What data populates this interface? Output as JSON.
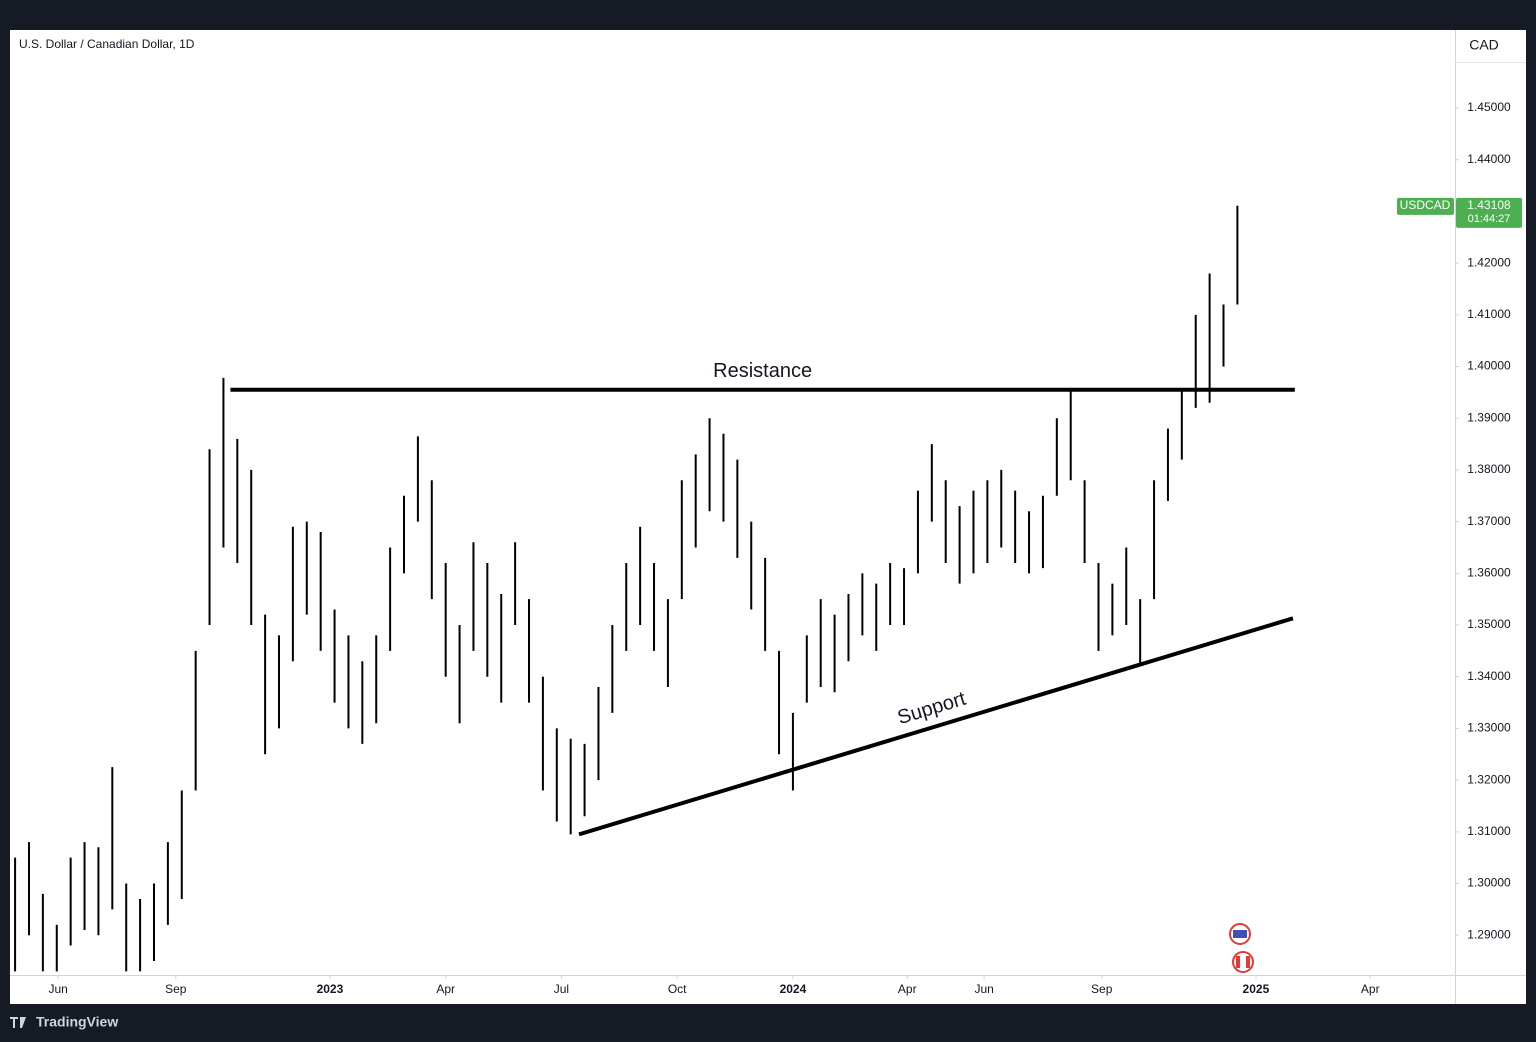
{
  "chart_data": {
    "type": "ohlc",
    "title": "U.S. Dollar / Canadian Dollar, 1D",
    "currency": "CAD",
    "symbol": "USDCAD",
    "last_value": 1.43108,
    "countdown": "01:44:27",
    "brand": "TradingView",
    "color": "#000000",
    "x": [
      2022.32,
      2022.35,
      2022.38,
      2022.41,
      2022.44,
      2022.47,
      2022.5,
      2022.53,
      2022.56,
      2022.59,
      2022.62,
      2022.65,
      2022.68,
      2022.71,
      2022.74,
      2022.77,
      2022.8,
      2022.83,
      2022.86,
      2022.89,
      2022.92,
      2022.95,
      2022.98,
      2023.01,
      2023.04,
      2023.07,
      2023.1,
      2023.13,
      2023.16,
      2023.19,
      2023.22,
      2023.25,
      2023.28,
      2023.31,
      2023.34,
      2023.37,
      2023.4,
      2023.43,
      2023.46,
      2023.49,
      2023.52,
      2023.55,
      2023.58,
      2023.61,
      2023.64,
      2023.67,
      2023.7,
      2023.73,
      2023.76,
      2023.79,
      2023.82,
      2023.85,
      2023.88,
      2023.91,
      2023.94,
      2023.97,
      2024.0,
      2024.03,
      2024.06,
      2024.09,
      2024.12,
      2024.15,
      2024.18,
      2024.21,
      2024.24,
      2024.27,
      2024.3,
      2024.33,
      2024.36,
      2024.39,
      2024.42,
      2024.45,
      2024.48,
      2024.51,
      2024.54,
      2024.57,
      2024.6,
      2024.63,
      2024.66,
      2024.69,
      2024.72,
      2024.75,
      2024.78,
      2024.81,
      2024.84,
      2024.87,
      2024.9,
      2024.93,
      2024.96
    ],
    "high": [
      1.305,
      1.308,
      1.298,
      1.292,
      1.305,
      1.308,
      1.307,
      1.3225,
      1.3,
      1.297,
      1.3,
      1.308,
      1.318,
      1.345,
      1.384,
      1.3978,
      1.386,
      1.38,
      1.352,
      1.348,
      1.369,
      1.37,
      1.368,
      1.353,
      1.348,
      1.343,
      1.348,
      1.365,
      1.375,
      1.3865,
      1.378,
      1.362,
      1.35,
      1.366,
      1.362,
      1.356,
      1.366,
      1.355,
      1.34,
      1.33,
      1.328,
      1.327,
      1.338,
      1.35,
      1.362,
      1.369,
      1.362,
      1.355,
      1.378,
      1.383,
      1.39,
      1.387,
      1.382,
      1.37,
      1.363,
      1.345,
      1.333,
      1.348,
      1.355,
      1.352,
      1.356,
      1.36,
      1.358,
      1.362,
      1.361,
      1.376,
      1.385,
      1.378,
      1.373,
      1.376,
      1.378,
      1.38,
      1.376,
      1.372,
      1.375,
      1.39,
      1.3955,
      1.378,
      1.362,
      1.358,
      1.365,
      1.355,
      1.378,
      1.388,
      1.3955,
      1.41,
      1.418,
      1.412,
      1.4311
    ],
    "low": [
      1.283,
      1.29,
      1.283,
      1.283,
      1.288,
      1.291,
      1.29,
      1.295,
      1.283,
      1.283,
      1.285,
      1.292,
      1.297,
      1.318,
      1.35,
      1.365,
      1.362,
      1.35,
      1.325,
      1.33,
      1.343,
      1.352,
      1.345,
      1.335,
      1.33,
      1.327,
      1.331,
      1.345,
      1.36,
      1.37,
      1.355,
      1.34,
      1.331,
      1.345,
      1.34,
      1.335,
      1.35,
      1.335,
      1.318,
      1.312,
      1.3095,
      1.313,
      1.32,
      1.333,
      1.345,
      1.35,
      1.345,
      1.338,
      1.355,
      1.365,
      1.372,
      1.37,
      1.363,
      1.353,
      1.345,
      1.325,
      1.318,
      1.335,
      1.338,
      1.337,
      1.343,
      1.348,
      1.345,
      1.35,
      1.35,
      1.36,
      1.37,
      1.362,
      1.358,
      1.36,
      1.362,
      1.365,
      1.362,
      1.36,
      1.361,
      1.375,
      1.378,
      1.362,
      1.345,
      1.348,
      1.35,
      1.342,
      1.355,
      1.374,
      1.382,
      1.392,
      1.393,
      1.4,
      1.412
    ],
    "xlim": [
      2022.309,
      2025.43
    ],
    "ylim": [
      1.2823,
      1.4651
    ],
    "xticks": [
      {
        "value": 2022.413,
        "label": "Jun"
      },
      {
        "value": 2022.667,
        "label": "Sep"
      },
      {
        "value": 2023,
        "label": "2023"
      },
      {
        "value": 2023.25,
        "label": "Apr"
      },
      {
        "value": 2023.5,
        "label": "Jul"
      },
      {
        "value": 2023.75,
        "label": "Oct"
      },
      {
        "value": 2024,
        "label": "2024"
      },
      {
        "value": 2024.247,
        "label": "Apr"
      },
      {
        "value": 2024.413,
        "label": "Jun"
      },
      {
        "value": 2024.667,
        "label": "Sep"
      },
      {
        "value": 2025,
        "label": "2025"
      },
      {
        "value": 2025.247,
        "label": "Apr"
      }
    ],
    "yticks": [
      {
        "value": 1.29,
        "label": "1.29000"
      },
      {
        "value": 1.3,
        "label": "1.30000"
      },
      {
        "value": 1.31,
        "label": "1.31000"
      },
      {
        "value": 1.32,
        "label": "1.32000"
      },
      {
        "value": 1.33,
        "label": "1.33000"
      },
      {
        "value": 1.34,
        "label": "1.34000"
      },
      {
        "value": 1.35,
        "label": "1.35000"
      },
      {
        "value": 1.36,
        "label": "1.36000"
      },
      {
        "value": 1.37,
        "label": "1.37000"
      },
      {
        "value": 1.38,
        "label": "1.38000"
      },
      {
        "value": 1.39,
        "label": "1.39000"
      },
      {
        "value": 1.4,
        "label": "1.40000"
      },
      {
        "value": 1.41,
        "label": "1.41000"
      },
      {
        "value": 1.42,
        "label": "1.42000"
      },
      {
        "value": 1.43,
        "label": "1.43000"
      },
      {
        "value": 1.44,
        "label": "1.44000"
      },
      {
        "value": 1.45,
        "label": "1.45000"
      }
    ],
    "lines": [
      {
        "label": "Resistance",
        "x": [
          2022.785,
          2025.084
        ],
        "y": [
          1.3955,
          1.3955
        ]
      },
      {
        "label": "Support",
        "x": [
          2023.538,
          2025.08
        ],
        "y": [
          1.3095,
          1.3513
        ]
      }
    ]
  }
}
